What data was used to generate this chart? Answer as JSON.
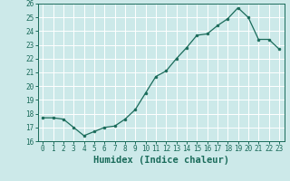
{
  "x": [
    0,
    1,
    2,
    3,
    4,
    5,
    6,
    7,
    8,
    9,
    10,
    11,
    12,
    13,
    14,
    15,
    16,
    17,
    18,
    19,
    20,
    21,
    22,
    23
  ],
  "y": [
    17.7,
    17.7,
    17.6,
    17.0,
    16.4,
    16.7,
    17.0,
    17.1,
    17.6,
    18.3,
    19.5,
    20.7,
    21.1,
    22.0,
    22.8,
    23.7,
    23.8,
    24.4,
    24.9,
    25.7,
    25.0,
    23.4,
    23.4,
    22.7
  ],
  "line_color": "#1a6b5a",
  "marker": "o",
  "marker_size": 2.0,
  "bg_color": "#cce9e9",
  "grid_color": "#ffffff",
  "xlabel": "Humidex (Indice chaleur)",
  "ylim": [
    16,
    26
  ],
  "xlim": [
    -0.5,
    23.5
  ],
  "yticks": [
    16,
    17,
    18,
    19,
    20,
    21,
    22,
    23,
    24,
    25,
    26
  ],
  "xticks": [
    0,
    1,
    2,
    3,
    4,
    5,
    6,
    7,
    8,
    9,
    10,
    11,
    12,
    13,
    14,
    15,
    16,
    17,
    18,
    19,
    20,
    21,
    22,
    23
  ],
  "tick_fontsize": 5.5,
  "xlabel_fontsize": 7.5,
  "linewidth": 0.9
}
